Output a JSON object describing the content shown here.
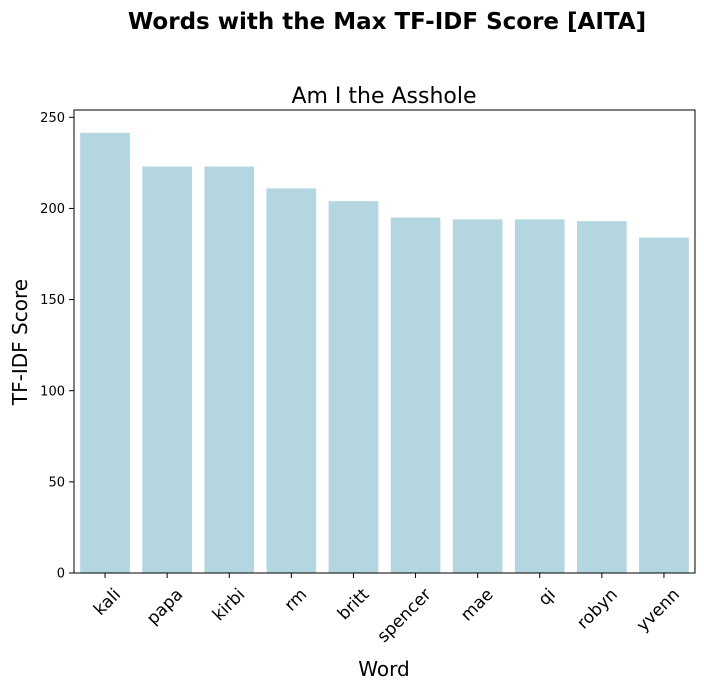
{
  "figure": {
    "suptitle": "Words with the Max TF-IDF Score [AITA]"
  },
  "chart_data": {
    "type": "bar",
    "title": "Am I the Asshole",
    "xlabel": "Word",
    "ylabel": "TF-IDF Score",
    "categories": [
      "kali",
      "papa",
      "kirbi",
      "rm",
      "britt",
      "spencer",
      "mae",
      "qi",
      "robyn",
      "yvenn"
    ],
    "values": [
      241.5,
      223,
      223,
      211,
      204,
      195,
      194,
      194,
      193,
      184
    ],
    "ylim": [
      0,
      254
    ],
    "yticks": [
      0,
      50,
      100,
      150,
      200,
      250
    ],
    "grid": false,
    "legend": "none",
    "bar_color": "#b4d6e0"
  }
}
